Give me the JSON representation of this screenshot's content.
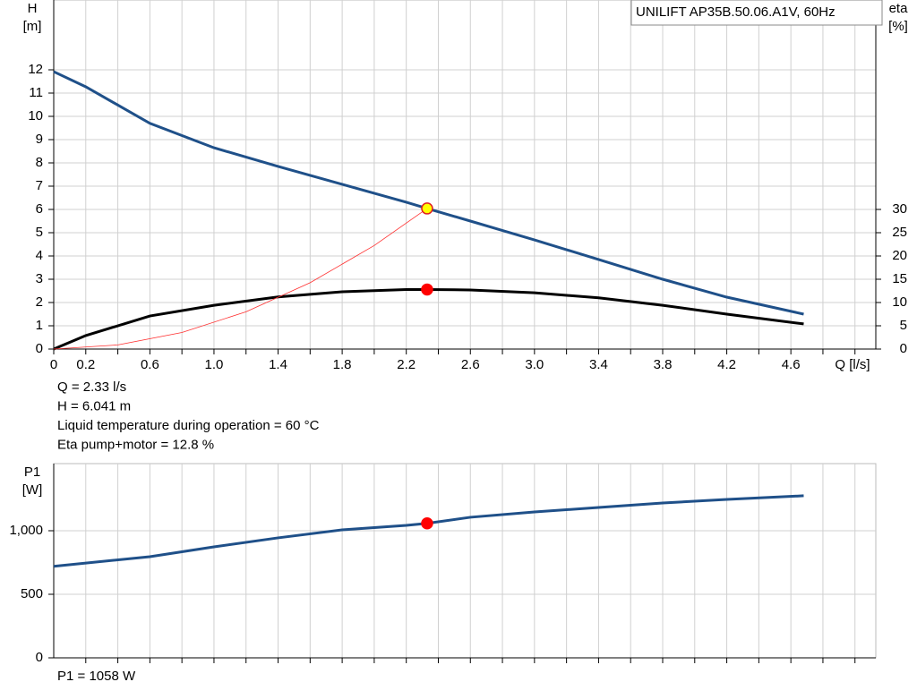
{
  "chart_data": [
    {
      "type": "line",
      "title": "UNILIFT AP35B.50.06.A1V, 60Hz",
      "ylabel": [
        "H",
        "[m]"
      ],
      "y2label": [
        "eta",
        "[%]"
      ],
      "xlabel": "Q [l/s]",
      "xlim": [
        0,
        5.13
      ],
      "ylim": [
        0,
        15
      ],
      "y2lim": [
        0,
        75
      ],
      "xticks": [
        0,
        0.2,
        0.6,
        {
          "value": 1,
          "label": "1.0"
        },
        1.4,
        1.8,
        2.2,
        2.6,
        {
          "value": 3,
          "label": "3.0"
        },
        3.4,
        3.8,
        4.2,
        4.6
      ],
      "xminorticks": [
        0.4,
        0.8,
        1.2,
        1.6,
        2.0,
        2.4,
        2.8,
        3.2,
        3.6,
        4.0,
        4.4,
        4.8,
        5.0
      ],
      "yticks": [
        0,
        1,
        2,
        3,
        4,
        5,
        6,
        7,
        8,
        9,
        10,
        11,
        12
      ],
      "y2ticks": [
        0,
        5,
        10,
        15,
        20,
        25,
        30
      ],
      "grid": true,
      "series": [
        {
          "color": "#1f5089",
          "width": 3,
          "x": [
            0,
            0.2,
            0.6,
            1.0,
            1.4,
            1.8,
            2.2,
            2.33,
            2.6,
            3.0,
            3.4,
            3.8,
            4.2,
            4.68
          ],
          "values": [
            11.92,
            11.27,
            9.7,
            8.65,
            7.85,
            7.08,
            6.31,
            6.041,
            5.5,
            4.69,
            3.85,
            3.0,
            2.23,
            1.5
          ]
        },
        {
          "color": "#000000",
          "width": 3,
          "axis": "y2",
          "x": [
            0,
            0.2,
            0.6,
            1.0,
            1.4,
            1.8,
            2.2,
            2.33,
            2.6,
            3.0,
            3.4,
            3.8,
            4.2,
            4.68
          ],
          "values": [
            0,
            2.9,
            7.1,
            9.4,
            11.2,
            12.3,
            12.8,
            12.8,
            12.7,
            12.1,
            11.0,
            9.4,
            7.5,
            5.4
          ]
        },
        {
          "color": "#ff3030",
          "width": 0.8,
          "x": [
            0,
            0.4,
            0.8,
            1.2,
            1.6,
            2.0,
            2.33
          ],
          "values": [
            0,
            0.178,
            0.712,
            1.6,
            2.85,
            4.45,
            6.041
          ]
        }
      ],
      "points": [
        {
          "x": 2.33,
          "y": 6.041,
          "color": "#ffff00",
          "stroke": "#e02020"
        },
        {
          "x": 2.33,
          "y": 12.8,
          "axis": "y2",
          "color": "#ff0000",
          "stroke": "#ff0000"
        }
      ],
      "annotations": [
        "Q = 2.33 l/s",
        "H = 6.041 m",
        "Liquid temperature during operation = 60 °C",
        "Eta pump+motor = 12.8 %"
      ]
    },
    {
      "type": "line",
      "ylabel": [
        "P1",
        "[W]"
      ],
      "xlim": [
        0,
        5.13
      ],
      "ylim": [
        0,
        1528
      ],
      "yticks": [
        0,
        500,
        {
          "value": 1000,
          "label": "1,000"
        }
      ],
      "xminorticks": [
        0.2,
        0.4,
        0.6,
        0.8,
        1.0,
        1.2,
        1.4,
        1.6,
        1.8,
        2.0,
        2.2,
        2.4,
        2.6,
        2.8,
        3.0,
        3.2,
        3.4,
        3.6,
        3.8,
        4.0,
        4.2,
        4.4,
        4.6,
        4.8,
        5.0
      ],
      "grid": true,
      "series": [
        {
          "color": "#1f5089",
          "width": 3,
          "x": [
            0,
            0.6,
            1.0,
            1.4,
            1.8,
            2.2,
            2.33,
            2.6,
            3.0,
            3.4,
            3.8,
            4.2,
            4.68
          ],
          "values": [
            720,
            796,
            873,
            944,
            1007,
            1042,
            1058,
            1106,
            1148,
            1183,
            1218,
            1246,
            1275
          ]
        }
      ],
      "points": [
        {
          "x": 2.33,
          "y": 1058,
          "color": "#ff0000",
          "stroke": "#ff0000"
        }
      ],
      "annotations": [
        "P1 = 1058 W"
      ]
    }
  ]
}
